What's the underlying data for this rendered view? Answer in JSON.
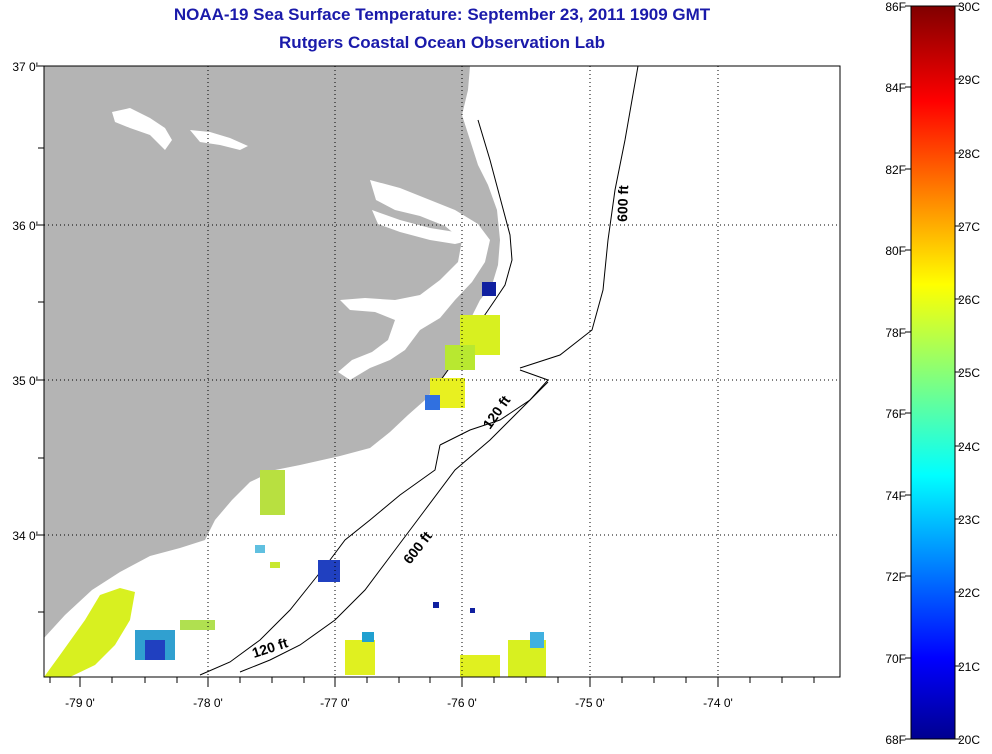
{
  "title": {
    "line1": "NOAA-19 Sea Surface Temperature:  September 23, 2011 1909 GMT",
    "line2": "Rutgers Coastal Ocean Observation Lab"
  },
  "axes": {
    "lat_labels": [
      "37 0'",
      "36 0'",
      "35 0'",
      "34 0'"
    ],
    "lon_labels": [
      "-79 0'",
      "-78 0'",
      "-77 0'",
      "-76 0'",
      "-75 0'",
      "-74 0'"
    ]
  },
  "contours": {
    "upper_600": "600 ft",
    "mid_120": "120 ft",
    "mid_600": "600 ft",
    "lower_120": "120 ft"
  },
  "colorbar": {
    "fahrenheit": [
      "86F",
      "84F",
      "82F",
      "80F",
      "78F",
      "76F",
      "74F",
      "72F",
      "70F",
      "68F"
    ],
    "celsius": [
      "30C",
      "29C",
      "28C",
      "27C",
      "26C",
      "25C",
      "24C",
      "23C",
      "22C",
      "21C",
      "20C"
    ],
    "range_c": [
      20,
      30
    ]
  },
  "colors": {
    "title": "#1a1aaa",
    "land": "#b4b4b4",
    "ocean": "#ffffff"
  }
}
